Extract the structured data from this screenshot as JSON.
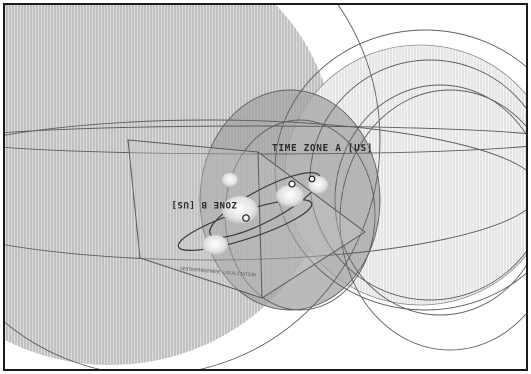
{
  "scene": {
    "labels": {
      "time_zone_a": "TIME ZONE A [US]",
      "time_zone_b": "ZONE B [US]",
      "plane_caption": "GEOTROPHOSPHERE LOCALIZATION"
    },
    "colors": {
      "background": "#ffffff",
      "outer_frame": "#1a1a1a",
      "sphere_fill": "#8a8a8a",
      "grid_line": "#6f6f6f",
      "label_text": "#2a2a2a",
      "node_fill": "#f4f4f4"
    },
    "icons": {
      "node_marker": "small-sphere-icon"
    }
  }
}
